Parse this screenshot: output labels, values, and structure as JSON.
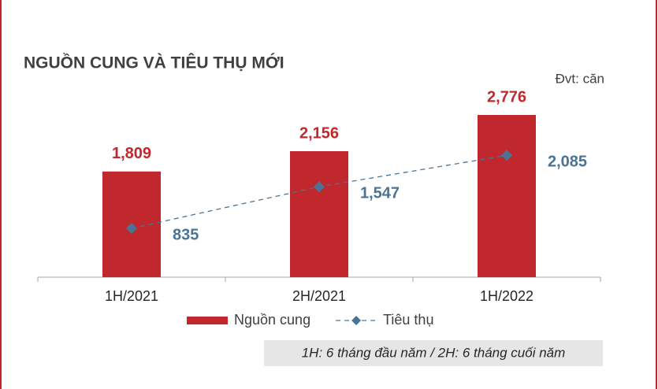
{
  "chart_data": {
    "type": "bar",
    "title": "NGUỒN CUNG VÀ TIÊU THỤ MỚI",
    "unit_note": "Đvt: căn",
    "footnote": "1H: 6 tháng đầu năm / 2H: 6 tháng cuối năm",
    "categories": [
      "1H/2021",
      "2H/2021",
      "1H/2022"
    ],
    "series": [
      {
        "name": "Nguồn cung",
        "type": "bar",
        "color": "#c0282d",
        "values": [
          1809,
          2156,
          2776
        ],
        "value_labels": [
          "1,809",
          "2,156",
          "2,776"
        ]
      },
      {
        "name": "Tiêu thụ",
        "type": "line",
        "color": "#4a7394",
        "dashed": true,
        "marker": "diamond",
        "values": [
          835,
          1547,
          2085
        ],
        "value_labels": [
          "835",
          "1,547",
          "2,085"
        ]
      }
    ]
  }
}
